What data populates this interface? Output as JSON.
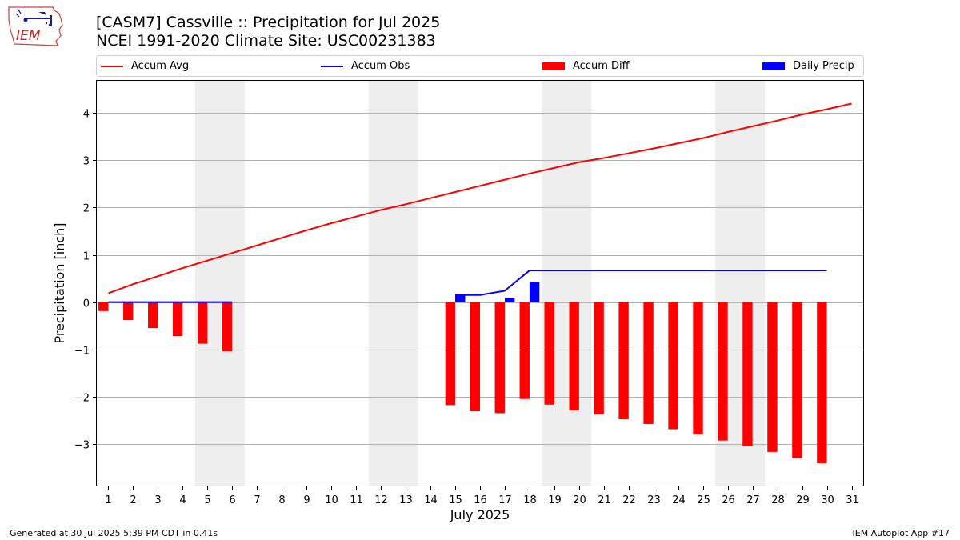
{
  "header": {
    "logo_text": "IEM",
    "title_line1": "[CASM7] Cassville :: Precipitation for Jul 2025",
    "title_line2": "NCEI 1991-2020 Climate Site: USC00231383"
  },
  "legend": {
    "accum_avg": "Accum Avg",
    "accum_obs": "Accum Obs",
    "accum_diff": "Accum Diff",
    "daily_precip": "Daily Precip"
  },
  "footer": {
    "generated": "Generated at 30 Jul 2025 5:39 PM CDT in 0.41s",
    "app": "IEM Autoplot App #17"
  },
  "colors": {
    "avg": "#ff0000",
    "obs": "#0000ff",
    "diff": "#ff0000",
    "daily": "#0000ff",
    "weekend": "#eeeeee",
    "grid": "#b0b0b0"
  },
  "chart_data": {
    "type": "bar",
    "xlabel": "July 2025",
    "ylabel": "Precipitation [inch]",
    "xlim": [
      0.5,
      31.5
    ],
    "ylim": [
      -3.9,
      4.7
    ],
    "yticks": [
      -3,
      -2,
      -1,
      0,
      1,
      2,
      3,
      4
    ],
    "ytick_labels": [
      "−3",
      "−2",
      "−1",
      "0",
      "1",
      "2",
      "3",
      "4"
    ],
    "categories": [
      "1",
      "2",
      "3",
      "4",
      "5",
      "6",
      "7",
      "8",
      "9",
      "10",
      "11",
      "12",
      "13",
      "14",
      "15",
      "16",
      "17",
      "18",
      "19",
      "20",
      "21",
      "22",
      "23",
      "24",
      "25",
      "26",
      "27",
      "28",
      "29",
      "30",
      "31"
    ],
    "grid": "horizontal",
    "legend_position": "top",
    "weekend_spans": [
      [
        4.5,
        6.5
      ],
      [
        11.5,
        13.5
      ],
      [
        18.5,
        20.5
      ],
      [
        25.5,
        27.5
      ]
    ],
    "series": [
      {
        "name": "Accum Avg",
        "kind": "line",
        "x": [
          1,
          2,
          3,
          4,
          5,
          6,
          7,
          8,
          9,
          10,
          11,
          12,
          13,
          14,
          15,
          16,
          17,
          18,
          19,
          20,
          21,
          22,
          23,
          24,
          25,
          26,
          27,
          28,
          29,
          30,
          31
        ],
        "values": [
          0.19,
          0.38,
          0.55,
          0.72,
          0.88,
          1.04,
          1.2,
          1.36,
          1.52,
          1.67,
          1.81,
          1.95,
          2.07,
          2.2,
          2.33,
          2.46,
          2.59,
          2.72,
          2.84,
          2.96,
          3.05,
          3.15,
          3.25,
          3.36,
          3.47,
          3.6,
          3.72,
          3.84,
          3.97,
          4.08,
          4.2
        ]
      },
      {
        "name": "Accum Obs",
        "kind": "line",
        "x": [
          1,
          2,
          3,
          4,
          5,
          6,
          15,
          16,
          17,
          18,
          19,
          20,
          21,
          22,
          23,
          24,
          25,
          26,
          27,
          28,
          29,
          30
        ],
        "values": [
          0,
          0,
          0,
          0,
          0,
          0,
          0.15,
          0.15,
          0.24,
          0.67,
          0.67,
          0.67,
          0.67,
          0.67,
          0.67,
          0.67,
          0.67,
          0.67,
          0.67,
          0.67,
          0.67,
          0.67
        ]
      },
      {
        "name": "Accum Diff",
        "kind": "bar",
        "x": [
          1,
          2,
          3,
          4,
          5,
          6,
          15,
          16,
          17,
          18,
          19,
          20,
          21,
          22,
          23,
          24,
          25,
          26,
          27,
          28,
          29,
          30
        ],
        "values": [
          -0.19,
          -0.38,
          -0.55,
          -0.72,
          -0.88,
          -1.04,
          -2.18,
          -2.31,
          -2.35,
          -2.05,
          -2.17,
          -2.29,
          -2.38,
          -2.48,
          -2.58,
          -2.69,
          -2.8,
          -2.93,
          -3.05,
          -3.17,
          -3.3,
          -3.41
        ]
      },
      {
        "name": "Daily Precip",
        "kind": "bar",
        "x": [
          15,
          17,
          18
        ],
        "values": [
          0.15,
          0.09,
          0.43
        ]
      }
    ]
  }
}
